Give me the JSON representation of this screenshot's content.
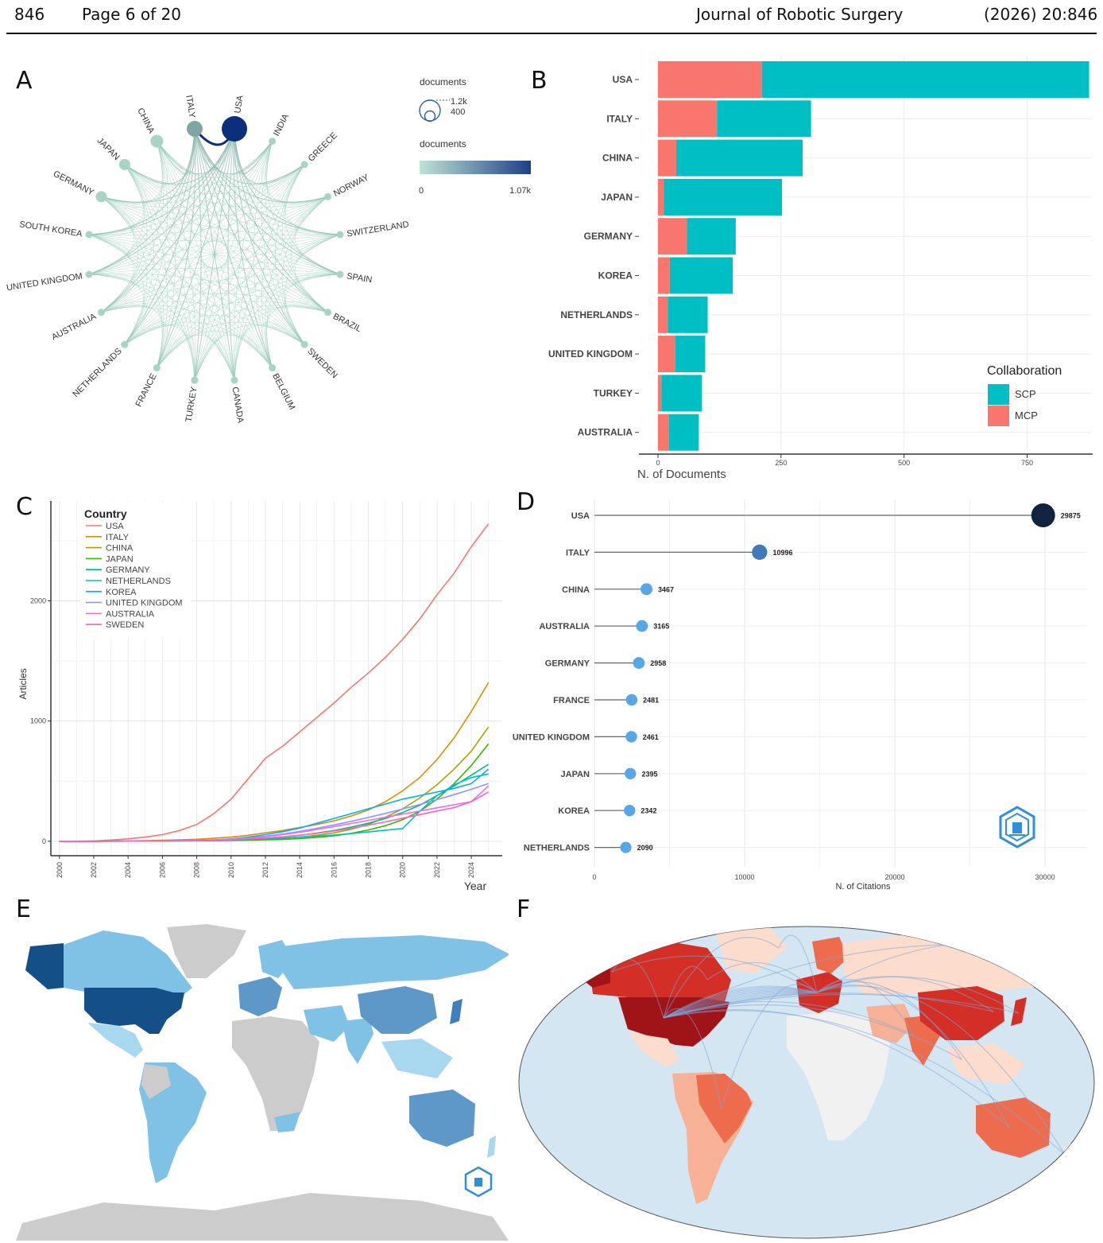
{
  "header": {
    "page_number": "846",
    "page_of": "Page 6 of 20",
    "journal": "Journal of Robotic Surgery",
    "citation": "(2026)  20:846"
  },
  "panels": {
    "a": "A",
    "b": "B",
    "c": "C",
    "d": "D",
    "e": "E",
    "f": "F"
  },
  "network": {
    "countries": [
      "USA",
      "INDIA",
      "GREECE",
      "NORWAY",
      "SWITZERLAND",
      "SPAIN",
      "BRAZIL",
      "SWEDEN",
      "BELGIUM",
      "CANADA",
      "TURKEY",
      "FRANCE",
      "NETHERLANDS",
      "AUSTRALIA",
      "UNITED KINGDOM",
      "SOUTH KOREA",
      "GERMANY",
      "JAPAN",
      "CHINA",
      "ITALY"
    ],
    "legend_size_title": "documents",
    "legend_size_values": [
      "1.2k",
      "400"
    ],
    "legend_color_title": "documents",
    "legend_color_min": "0",
    "legend_color_max": "1.07k",
    "node_color": "#a9d3c5",
    "usa_color": "#0b2f7a",
    "edge_color": "#9ccfbd"
  },
  "chart_data": [
    {
      "type": "bar",
      "stacked": true,
      "orientation": "horizontal",
      "categories": [
        "USA",
        "ITALY",
        "CHINA",
        "JAPAN",
        "GERMANY",
        "KOREA",
        "NETHERLANDS",
        "UNITED KINGDOM",
        "TURKEY",
        "AUSTRALIA"
      ],
      "series": [
        {
          "name": "MCP",
          "color": "#f8766d",
          "values": [
            211,
            120,
            37,
            12,
            59,
            24,
            20,
            35,
            7,
            22
          ]
        },
        {
          "name": "SCP",
          "color": "#00bfc4",
          "values": [
            665,
            191,
            257,
            240,
            99,
            128,
            81,
            61,
            82,
            61
          ]
        }
      ],
      "xlabel": "N. of Documents",
      "xticks": [
        0,
        250,
        500,
        750
      ],
      "xlim": [
        0,
        880
      ],
      "legend_title": "Collaboration",
      "legend_order": [
        "SCP",
        "MCP"
      ],
      "legend_position": "bottom-right"
    },
    {
      "type": "line",
      "xlabel": "Year",
      "ylabel": "Articles",
      "legend_title": "Country",
      "legend_position": "top-left",
      "xticks": [
        2000,
        2002,
        2004,
        2006,
        2008,
        2010,
        2012,
        2014,
        2016,
        2018,
        2020,
        2022,
        2024
      ],
      "yticks": [
        0,
        1000,
        2000
      ],
      "xlim": [
        1999.5,
        2025.8
      ],
      "ylim": [
        -120,
        2830
      ],
      "x": [
        2000,
        2001,
        2002,
        2003,
        2004,
        2005,
        2006,
        2007,
        2008,
        2009,
        2010,
        2011,
        2012,
        2013,
        2014,
        2015,
        2016,
        2017,
        2018,
        2019,
        2020,
        2021,
        2022,
        2023,
        2024,
        2025
      ],
      "series": [
        {
          "name": "USA",
          "color": "#f8766d",
          "values": [
            0,
            1,
            3,
            10,
            20,
            35,
            55,
            90,
            140,
            230,
            350,
            520,
            690,
            790,
            910,
            1030,
            1150,
            1280,
            1400,
            1530,
            1680,
            1850,
            2050,
            2230,
            2450,
            2640
          ]
        },
        {
          "name": "ITALY",
          "color": "#d89000",
          "values": [
            0,
            0,
            1,
            2,
            3,
            5,
            8,
            12,
            17,
            25,
            35,
            50,
            70,
            90,
            115,
            140,
            170,
            210,
            260,
            330,
            420,
            530,
            680,
            860,
            1080,
            1320
          ]
        },
        {
          "name": "CHINA",
          "color": "#a3a500",
          "values": [
            0,
            0,
            0,
            1,
            1,
            2,
            3,
            4,
            6,
            8,
            12,
            16,
            20,
            25,
            35,
            50,
            70,
            100,
            140,
            200,
            270,
            360,
            470,
            600,
            750,
            950
          ]
        },
        {
          "name": "JAPAN",
          "color": "#39b600",
          "values": [
            0,
            0,
            0,
            0,
            1,
            1,
            2,
            3,
            4,
            5,
            7,
            9,
            12,
            15,
            22,
            32,
            46,
            66,
            94,
            130,
            180,
            250,
            350,
            480,
            630,
            810
          ]
        },
        {
          "name": "GERMANY",
          "color": "#00bf7d",
          "values": [
            0,
            0,
            0,
            1,
            1,
            2,
            3,
            4,
            6,
            8,
            12,
            18,
            26,
            36,
            50,
            68,
            90,
            118,
            150,
            190,
            240,
            300,
            380,
            460,
            550,
            640
          ]
        },
        {
          "name": "NETHERLANDS",
          "color": "#00bfc4",
          "values": [
            0,
            0,
            1,
            1,
            2,
            3,
            4,
            5,
            7,
            9,
            12,
            16,
            20,
            26,
            34,
            42,
            52,
            64,
            78,
            92,
            106,
            250,
            380,
            470,
            530,
            560
          ]
        },
        {
          "name": "KOREA",
          "color": "#00b0f6",
          "values": [
            0,
            0,
            0,
            1,
            1,
            2,
            3,
            5,
            7,
            10,
            20,
            35,
            55,
            80,
            110,
            150,
            190,
            230,
            270,
            310,
            350,
            380,
            410,
            440,
            480,
            600
          ]
        },
        {
          "name": "UNITED KINGDOM",
          "color": "#9590ff",
          "values": [
            0,
            0,
            0,
            1,
            1,
            2,
            3,
            5,
            8,
            12,
            18,
            28,
            42,
            60,
            82,
            108,
            136,
            166,
            198,
            232,
            268,
            306,
            346,
            388,
            432,
            480
          ]
        },
        {
          "name": "AUSTRALIA",
          "color": "#e76bf3",
          "values": [
            0,
            0,
            1,
            1,
            2,
            3,
            4,
            6,
            8,
            11,
            15,
            24,
            38,
            55,
            75,
            98,
            122,
            148,
            174,
            200,
            226,
            252,
            278,
            304,
            330,
            460
          ]
        },
        {
          "name": "SWEDEN",
          "color": "#ff62bc",
          "values": [
            0,
            0,
            0,
            1,
            1,
            2,
            3,
            4,
            6,
            9,
            13,
            19,
            27,
            37,
            50,
            66,
            85,
            108,
            134,
            162,
            192,
            222,
            252,
            280,
            330,
            410
          ]
        }
      ]
    },
    {
      "type": "scatter",
      "subtype": "lollipop",
      "orientation": "horizontal",
      "categories": [
        "USA",
        "ITALY",
        "CHINA",
        "AUSTRALIA",
        "GERMANY",
        "FRANCE",
        "UNITED KINGDOM",
        "JAPAN",
        "KOREA",
        "NETHERLANDS"
      ],
      "values": [
        29875,
        10996,
        3467,
        3165,
        2958,
        2481,
        2461,
        2395,
        2342,
        2090
      ],
      "labels": [
        "29875",
        "10996",
        "3467",
        "3165",
        "2958",
        "2481",
        "2461",
        "2395",
        "2342",
        "2090"
      ],
      "xlabel": "N. of Citations",
      "xticks": [
        0,
        10000,
        20000,
        30000
      ],
      "xlim": [
        0,
        32800
      ]
    }
  ],
  "maps": {
    "e": {
      "ocean": "#ffffff",
      "no_data": "#cccccc",
      "dark": "#154f88",
      "mid": "#5e98c8",
      "light": "#80c2e6",
      "pale": "#a8d8ef"
    },
    "f": {
      "ocean": "#d4e6f1",
      "no_data": "#f1f1f1",
      "darkest": "#a01418",
      "dark": "#d42f26",
      "mid": "#ee6c4e",
      "light": "#f7b196",
      "pale": "#fcdccc",
      "links": "#7aa6d9"
    }
  }
}
